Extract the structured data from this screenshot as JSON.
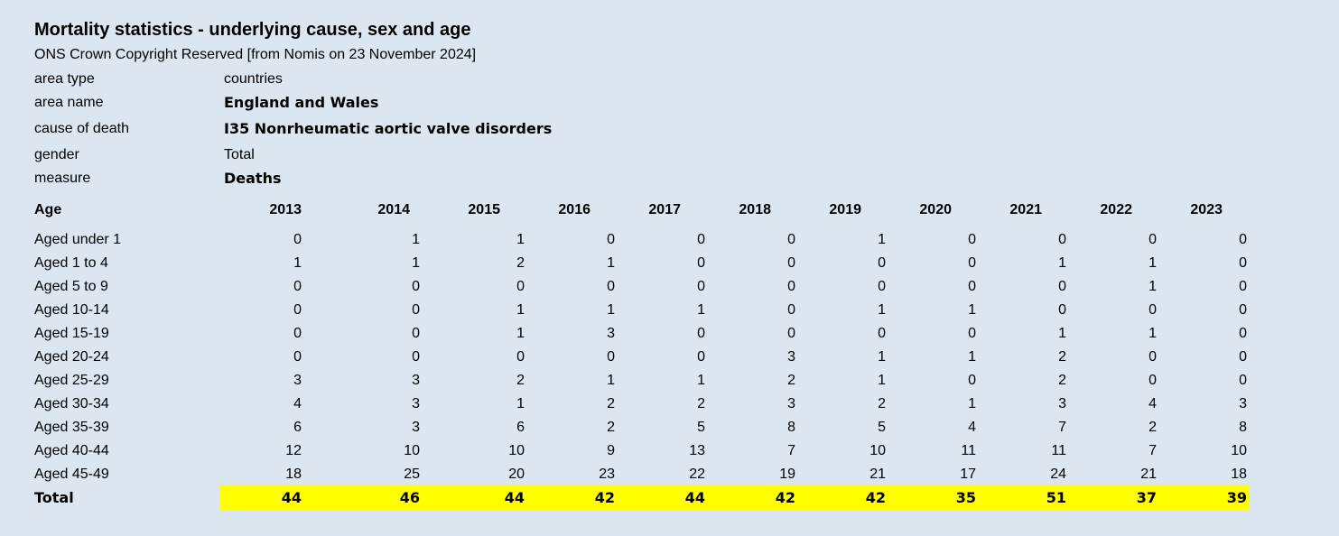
{
  "title": "Mortality statistics - underlying cause, sex and age",
  "subtitle": "ONS Crown Copyright Reserved [from Nomis on 23 November 2024]",
  "meta": [
    {
      "label": "area type",
      "value": "countries",
      "bold": false
    },
    {
      "label": "area name",
      "value": "England and Wales",
      "bold": true
    },
    {
      "label": "cause of death",
      "value": "I35 Nonrheumatic aortic valve disorders",
      "bold": true
    },
    {
      "label": "gender",
      "value": "Total",
      "bold": false
    },
    {
      "label": "measure",
      "value": "Deaths",
      "bold": true
    }
  ],
  "table": {
    "age_header": "Age",
    "years": [
      "2013",
      "2014",
      "2015",
      "2016",
      "2017",
      "2018",
      "2019",
      "2020",
      "2021",
      "2022",
      "2023"
    ],
    "rows": [
      {
        "label": "Aged under 1",
        "values": [
          "0",
          "1",
          "1",
          "0",
          "0",
          "0",
          "1",
          "0",
          "0",
          "0",
          "0"
        ]
      },
      {
        "label": "Aged 1 to 4",
        "values": [
          "1",
          "1",
          "2",
          "1",
          "0",
          "0",
          "0",
          "0",
          "1",
          "1",
          "0"
        ]
      },
      {
        "label": "Aged 5 to 9",
        "values": [
          "0",
          "0",
          "0",
          "0",
          "0",
          "0",
          "0",
          "0",
          "0",
          "1",
          "0"
        ]
      },
      {
        "label": "Aged 10-14",
        "values": [
          "0",
          "0",
          "1",
          "1",
          "1",
          "0",
          "1",
          "1",
          "0",
          "0",
          "0"
        ]
      },
      {
        "label": "Aged 15-19",
        "values": [
          "0",
          "0",
          "1",
          "3",
          "0",
          "0",
          "0",
          "0",
          "1",
          "1",
          "0"
        ]
      },
      {
        "label": "Aged 20-24",
        "values": [
          "0",
          "0",
          "0",
          "0",
          "0",
          "3",
          "1",
          "1",
          "2",
          "0",
          "0"
        ]
      },
      {
        "label": "Aged 25-29",
        "values": [
          "3",
          "3",
          "2",
          "1",
          "1",
          "2",
          "1",
          "0",
          "2",
          "0",
          "0"
        ]
      },
      {
        "label": "Aged 30-34",
        "values": [
          "4",
          "3",
          "1",
          "2",
          "2",
          "3",
          "2",
          "1",
          "3",
          "4",
          "3"
        ]
      },
      {
        "label": "Aged 35-39",
        "values": [
          "6",
          "3",
          "6",
          "2",
          "5",
          "8",
          "5",
          "4",
          "7",
          "2",
          "8"
        ]
      },
      {
        "label": "Aged 40-44",
        "values": [
          "12",
          "10",
          "10",
          "9",
          "13",
          "7",
          "10",
          "11",
          "11",
          "7",
          "10"
        ]
      },
      {
        "label": "Aged 45-49",
        "values": [
          "18",
          "25",
          "20",
          "23",
          "22",
          "19",
          "21",
          "17",
          "24",
          "21",
          "18"
        ]
      }
    ],
    "total": {
      "label": "Total",
      "values": [
        "44",
        "46",
        "44",
        "42",
        "44",
        "42",
        "42",
        "35",
        "51",
        "37",
        "39"
      ]
    }
  },
  "colors": {
    "background": "#dce6f1",
    "total_highlight": "#ffff00"
  }
}
